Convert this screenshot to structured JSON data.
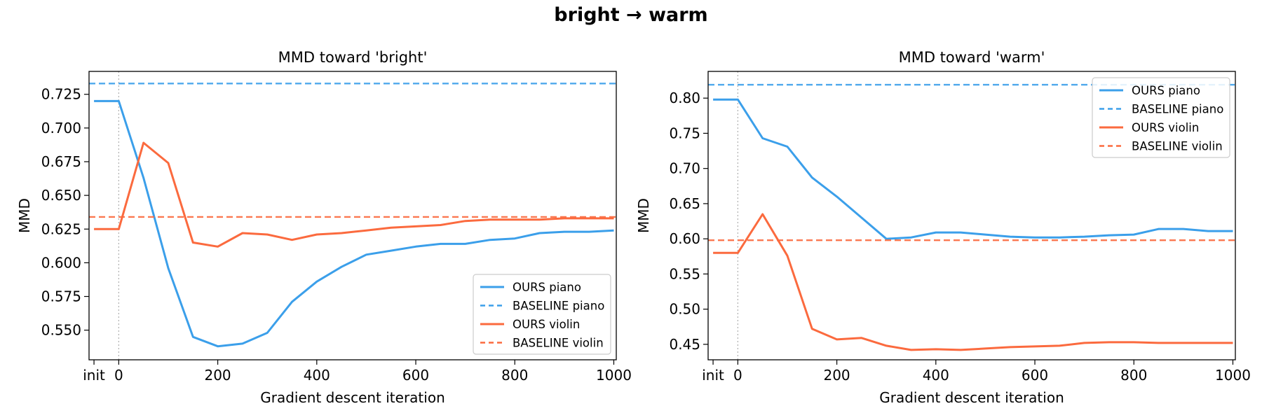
{
  "figure": {
    "title": "bright → warm"
  },
  "colors": {
    "piano": "#3b9fea",
    "violin": "#fb6a3e"
  },
  "chart_data": [
    {
      "type": "line",
      "title": "MMD toward  'bright'",
      "xlabel": "Gradient descent iteration",
      "ylabel": "MMD",
      "xlim": [
        -60,
        1005
      ],
      "ylim": [
        0.528,
        0.742
      ],
      "x_tick_labels": [
        "init",
        "0",
        "200",
        "400",
        "600",
        "800",
        "1000"
      ],
      "x_ticks": [
        -50,
        0,
        200,
        400,
        600,
        800,
        1000
      ],
      "y_ticks": [
        0.55,
        0.575,
        0.6,
        0.625,
        0.65,
        0.675,
        0.7,
        0.725
      ],
      "y_tick_labels": [
        "0.550",
        "0.575",
        "0.600",
        "0.625",
        "0.650",
        "0.675",
        "0.700",
        "0.725"
      ],
      "init_marker_x": 0,
      "grid": false,
      "legend_position": "lower-right",
      "series": [
        {
          "name": "OURS piano",
          "color": "#3b9fea",
          "style": "solid",
          "x": [
            -50,
            0,
            50,
            100,
            150,
            200,
            250,
            300,
            350,
            400,
            450,
            500,
            550,
            600,
            650,
            700,
            750,
            800,
            850,
            900,
            950,
            1000
          ],
          "y": [
            0.72,
            0.72,
            0.663,
            0.596,
            0.545,
            0.538,
            0.54,
            0.548,
            0.571,
            0.586,
            0.597,
            0.606,
            0.609,
            0.612,
            0.614,
            0.614,
            0.617,
            0.618,
            0.622,
            0.623,
            0.623,
            0.624
          ]
        },
        {
          "name": "BASELINE piano",
          "color": "#3b9fea",
          "style": "dashed",
          "y": 0.733
        },
        {
          "name": "OURS violin",
          "color": "#fb6a3e",
          "style": "solid",
          "x": [
            -50,
            0,
            50,
            100,
            150,
            200,
            250,
            300,
            350,
            400,
            450,
            500,
            550,
            600,
            650,
            700,
            750,
            800,
            850,
            900,
            950,
            1000
          ],
          "y": [
            0.625,
            0.625,
            0.689,
            0.674,
            0.615,
            0.612,
            0.622,
            0.621,
            0.617,
            0.621,
            0.622,
            0.624,
            0.626,
            0.627,
            0.628,
            0.631,
            0.632,
            0.632,
            0.632,
            0.633,
            0.633,
            0.633
          ]
        },
        {
          "name": "BASELINE violin",
          "color": "#fb6a3e",
          "style": "dashed",
          "y": 0.634
        }
      ]
    },
    {
      "type": "line",
      "title": "MMD toward  'warm'",
      "xlabel": "Gradient descent iteration",
      "ylabel": "MMD",
      "xlim": [
        -60,
        1005
      ],
      "ylim": [
        0.428,
        0.838
      ],
      "x_tick_labels": [
        "init",
        "0",
        "200",
        "400",
        "600",
        "800",
        "1000"
      ],
      "x_ticks": [
        -50,
        0,
        200,
        400,
        600,
        800,
        1000
      ],
      "y_ticks": [
        0.45,
        0.5,
        0.55,
        0.6,
        0.65,
        0.7,
        0.75,
        0.8
      ],
      "y_tick_labels": [
        "0.45",
        "0.50",
        "0.55",
        "0.60",
        "0.65",
        "0.70",
        "0.75",
        "0.80"
      ],
      "init_marker_x": 0,
      "grid": false,
      "legend_position": "upper-right",
      "series": [
        {
          "name": "OURS piano",
          "color": "#3b9fea",
          "style": "solid",
          "x": [
            -50,
            0,
            50,
            100,
            150,
            200,
            250,
            300,
            350,
            400,
            450,
            500,
            550,
            600,
            650,
            700,
            750,
            800,
            850,
            900,
            950,
            1000
          ],
          "y": [
            0.798,
            0.798,
            0.743,
            0.731,
            0.687,
            0.66,
            0.63,
            0.6,
            0.602,
            0.609,
            0.609,
            0.606,
            0.603,
            0.602,
            0.602,
            0.603,
            0.605,
            0.606,
            0.614,
            0.614,
            0.611,
            0.611
          ]
        },
        {
          "name": "BASELINE piano",
          "color": "#3b9fea",
          "style": "dashed",
          "y": 0.819
        },
        {
          "name": "OURS violin",
          "color": "#fb6a3e",
          "style": "solid",
          "x": [
            -50,
            0,
            50,
            100,
            150,
            200,
            250,
            300,
            350,
            400,
            450,
            500,
            550,
            600,
            650,
            700,
            750,
            800,
            850,
            900,
            950,
            1000
          ],
          "y": [
            0.58,
            0.58,
            0.635,
            0.576,
            0.472,
            0.457,
            0.459,
            0.448,
            0.442,
            0.443,
            0.442,
            0.444,
            0.446,
            0.447,
            0.448,
            0.452,
            0.453,
            0.453,
            0.452,
            0.452,
            0.452,
            0.452
          ]
        },
        {
          "name": "BASELINE violin",
          "color": "#fb6a3e",
          "style": "dashed",
          "y": 0.598
        }
      ]
    }
  ]
}
